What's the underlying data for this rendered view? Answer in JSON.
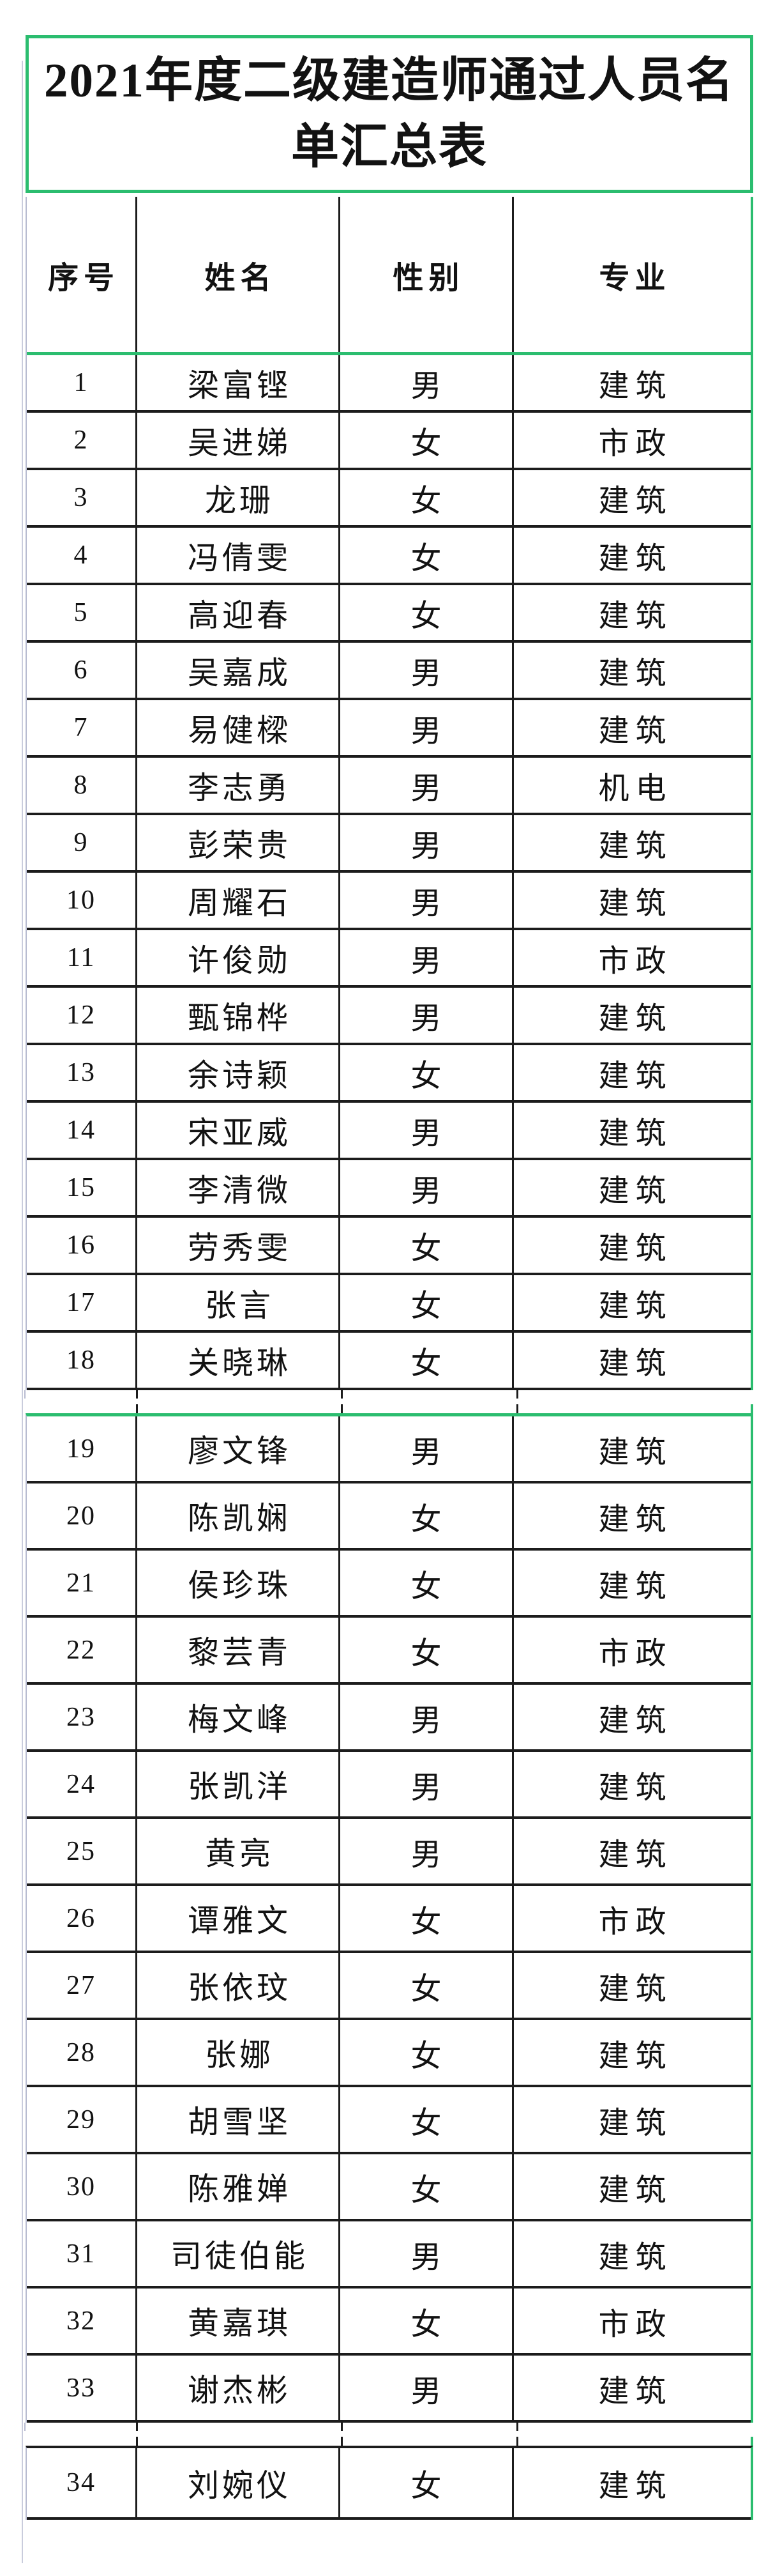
{
  "title_lines": [
    "2021年度二级建造师通过人员名",
    "单汇总表"
  ],
  "title_full": "2021年度二级建造师通过人员名单汇总表",
  "table": {
    "headers": [
      "序号",
      "姓名",
      "性别",
      "专业"
    ],
    "sections": [
      {
        "rows": [
          [
            "1",
            "梁富铿",
            "男",
            "建筑"
          ],
          [
            "2",
            "吴进娣",
            "女",
            "市政"
          ],
          [
            "3",
            "龙珊",
            "女",
            "建筑"
          ],
          [
            "4",
            "冯倩雯",
            "女",
            "建筑"
          ],
          [
            "5",
            "高迎春",
            "女",
            "建筑"
          ],
          [
            "6",
            "吴嘉成",
            "男",
            "建筑"
          ],
          [
            "7",
            "易健樑",
            "男",
            "建筑"
          ],
          [
            "8",
            "李志勇",
            "男",
            "机电"
          ],
          [
            "9",
            "彭荣贵",
            "男",
            "建筑"
          ],
          [
            "10",
            "周耀石",
            "男",
            "建筑"
          ],
          [
            "11",
            "许俊勋",
            "男",
            "市政"
          ],
          [
            "12",
            "甄锦桦",
            "男",
            "建筑"
          ],
          [
            "13",
            "余诗颖",
            "女",
            "建筑"
          ],
          [
            "14",
            "宋亚威",
            "男",
            "建筑"
          ],
          [
            "15",
            "李清微",
            "男",
            "建筑"
          ],
          [
            "16",
            "劳秀雯",
            "女",
            "建筑"
          ],
          [
            "17",
            "张言",
            "女",
            "建筑"
          ],
          [
            "18",
            "关晓琳",
            "女",
            "建筑"
          ]
        ]
      },
      {
        "rows": [
          [
            "19",
            "廖文锋",
            "男",
            "建筑"
          ],
          [
            "20",
            "陈凯娴",
            "女",
            "建筑"
          ],
          [
            "21",
            "侯珍珠",
            "女",
            "建筑"
          ],
          [
            "22",
            "黎芸青",
            "女",
            "市政"
          ],
          [
            "23",
            "梅文峰",
            "男",
            "建筑"
          ],
          [
            "24",
            "张凯洋",
            "男",
            "建筑"
          ],
          [
            "25",
            "黄亮",
            "男",
            "建筑"
          ],
          [
            "26",
            "谭雅文",
            "女",
            "市政"
          ],
          [
            "27",
            "张依玟",
            "女",
            "建筑"
          ],
          [
            "28",
            "张娜",
            "女",
            "建筑"
          ],
          [
            "29",
            "胡雪坚",
            "女",
            "建筑"
          ],
          [
            "30",
            "陈雅婵",
            "女",
            "建筑"
          ],
          [
            "31",
            "司徒伯能",
            "男",
            "建筑"
          ],
          [
            "32",
            "黄嘉琪",
            "女",
            "市政"
          ],
          [
            "33",
            "谢杰彬",
            "男",
            "建筑"
          ]
        ]
      },
      {
        "rows": [
          [
            "34",
            "刘婉仪",
            "女",
            "建筑"
          ]
        ]
      }
    ]
  },
  "colors": {
    "accent_green": "#2bbd6f",
    "border_black": "#1c1c1c",
    "gridline_gray": "#b7bbd0"
  }
}
